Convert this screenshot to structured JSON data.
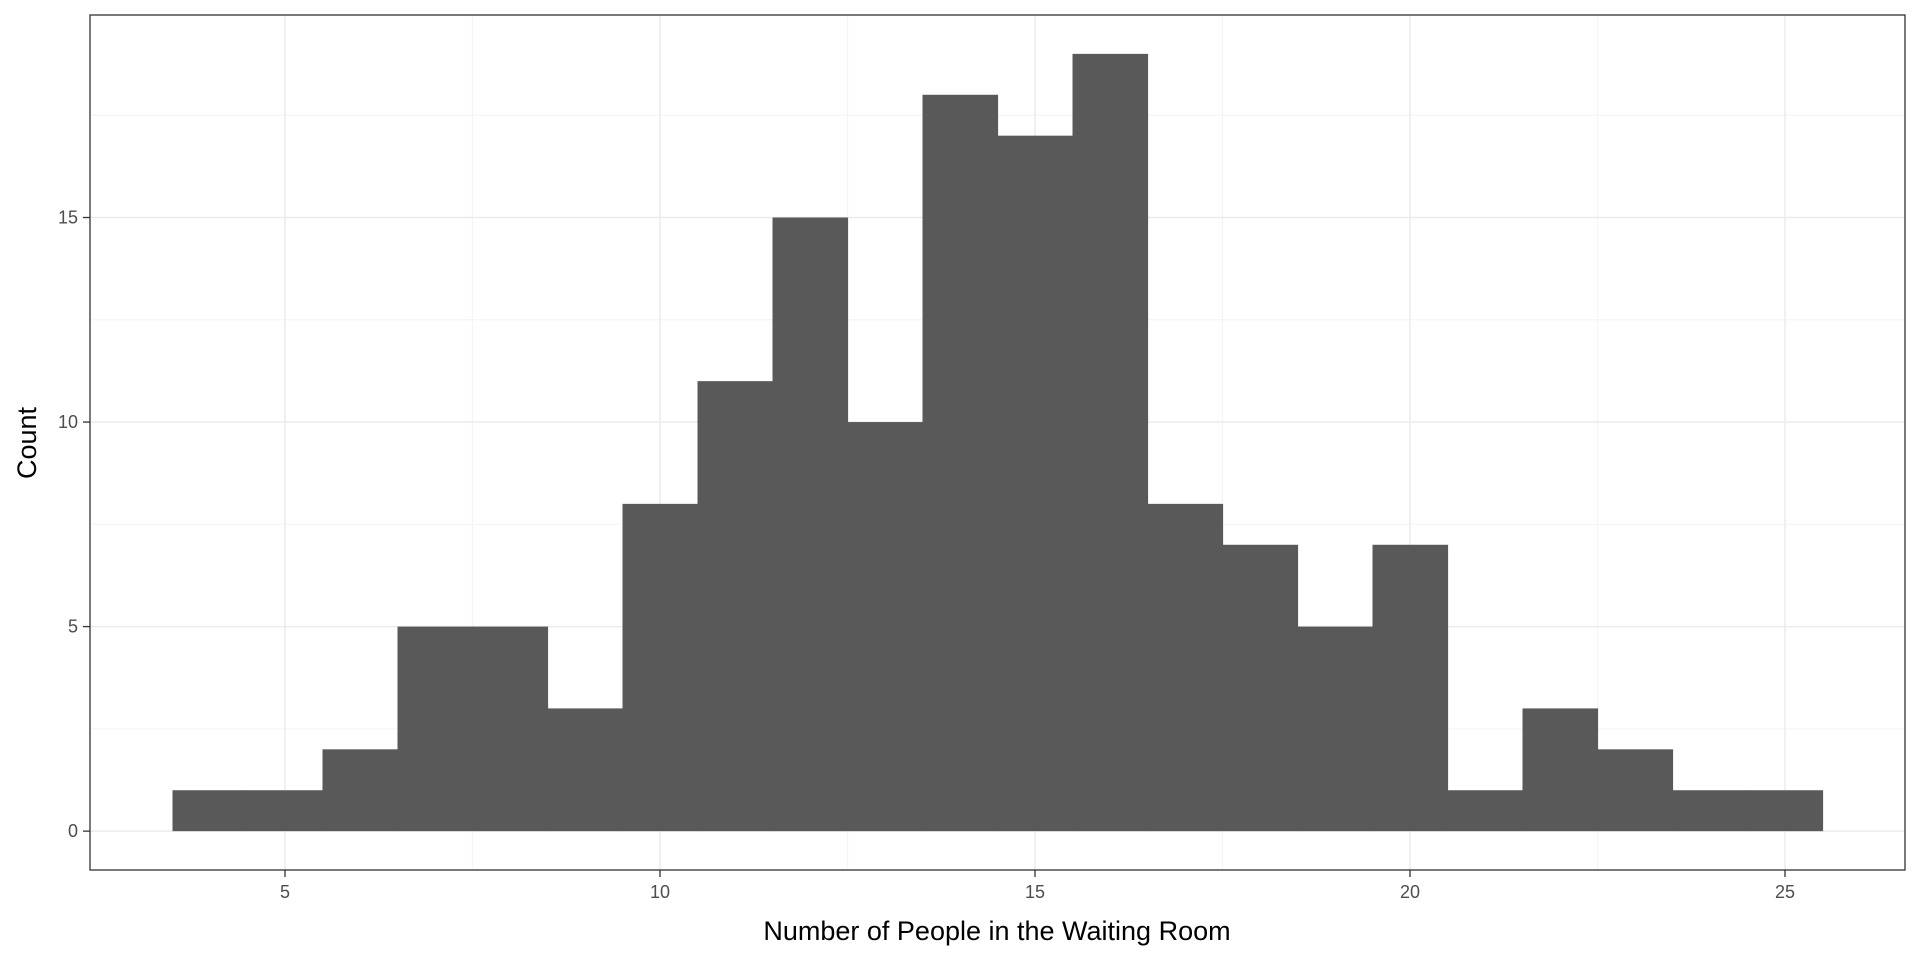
{
  "chart_data": {
    "type": "bar",
    "subtype": "histogram",
    "title": "",
    "xlabel": "Number of People in the Waiting Room",
    "ylabel": "Count",
    "bin_width": 1,
    "bins": [
      {
        "center": 4,
        "count": 1
      },
      {
        "center": 5,
        "count": 1
      },
      {
        "center": 6,
        "count": 2
      },
      {
        "center": 7,
        "count": 5
      },
      {
        "center": 8,
        "count": 5
      },
      {
        "center": 9,
        "count": 3
      },
      {
        "center": 10,
        "count": 8
      },
      {
        "center": 11,
        "count": 11
      },
      {
        "center": 12,
        "count": 15
      },
      {
        "center": 13,
        "count": 10
      },
      {
        "center": 14,
        "count": 18
      },
      {
        "center": 15,
        "count": 17
      },
      {
        "center": 16,
        "count": 19
      },
      {
        "center": 17,
        "count": 8
      },
      {
        "center": 18,
        "count": 7
      },
      {
        "center": 19,
        "count": 5
      },
      {
        "center": 20,
        "count": 7
      },
      {
        "center": 21,
        "count": 1
      },
      {
        "center": 22,
        "count": 3
      },
      {
        "center": 23,
        "count": 2
      },
      {
        "center": 24,
        "count": 1
      },
      {
        "center": 25,
        "count": 1
      }
    ],
    "xlim": [
      2.4,
      26.6
    ],
    "ylim": [
      -0.95,
      19.95
    ],
    "x_ticks": [
      5,
      10,
      15,
      20,
      25
    ],
    "x_tick_labels": [
      "5",
      "10",
      "15",
      "20",
      "25"
    ],
    "y_ticks": [
      0,
      5,
      10,
      15
    ],
    "y_tick_labels": [
      "0",
      "5",
      "10",
      "15"
    ],
    "x_minor": [
      7.5,
      12.5,
      17.5,
      22.5
    ],
    "y_minor": [
      2.5,
      7.5,
      12.5,
      17.5
    ],
    "grid": true,
    "legend": "none",
    "colors": {
      "bar": "#595959",
      "grid_major": "#ebebeb",
      "grid_minor": "#f5f5f5",
      "panel_border": "#333333",
      "tick_text": "#4d4d4d"
    }
  }
}
